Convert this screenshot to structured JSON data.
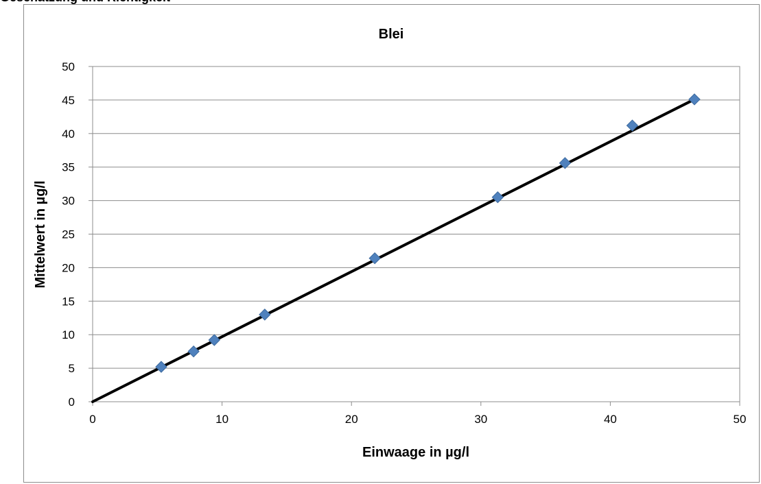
{
  "page": {
    "header_text": "Geschätzung und Richtigkeit"
  },
  "chart_data": {
    "type": "scatter",
    "title": "Blei",
    "xlabel": "Einwaage in µg/l",
    "ylabel": "Mittelwert in µg/l",
    "xlim": [
      0,
      50
    ],
    "ylim": [
      0,
      50
    ],
    "xticks": [
      0,
      10,
      20,
      30,
      40,
      50
    ],
    "yticks": [
      0,
      5,
      10,
      15,
      20,
      25,
      30,
      35,
      40,
      45,
      50
    ],
    "grid": "horizontal",
    "legend": "none",
    "series": [
      {
        "marker": "diamond",
        "color": "#4f81bd",
        "points": [
          {
            "x": 5.3,
            "y": 5.2
          },
          {
            "x": 7.8,
            "y": 7.5
          },
          {
            "x": 9.4,
            "y": 9.2
          },
          {
            "x": 13.3,
            "y": 13.0
          },
          {
            "x": 21.8,
            "y": 21.4
          },
          {
            "x": 31.3,
            "y": 30.5
          },
          {
            "x": 36.5,
            "y": 35.6
          },
          {
            "x": 41.7,
            "y": 41.2
          },
          {
            "x": 46.5,
            "y": 45.1
          }
        ]
      }
    ],
    "trendline": {
      "color": "#000000",
      "from": {
        "x": 0,
        "y": 0
      },
      "to": {
        "x": 46.5,
        "y": 45.1
      }
    }
  }
}
